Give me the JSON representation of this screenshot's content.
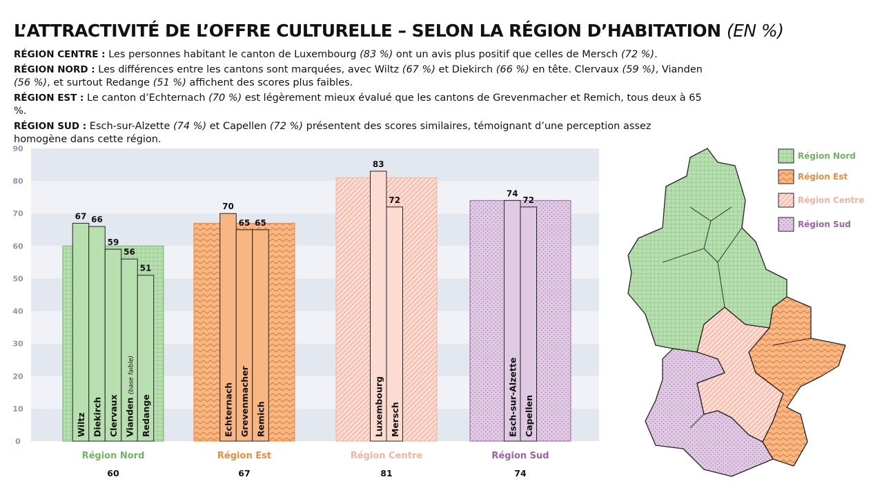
{
  "chart_data": {
    "type": "bar",
    "title": "L’ATTRACTIVITÉ DE L’OFFRE CULTURELLE – SELON LA RÉGION D’HABITATION",
    "title_unit": "(EN %)",
    "notes": [
      {
        "label": "RÉGION CENTRE :",
        "parts": [
          {
            "text": " Les personnes habitant le canton de Luxembourg "
          },
          {
            "text": "(83 %)",
            "italic": true
          },
          {
            "text": " ont un avis plus positif que celles de Mersch "
          },
          {
            "text": "(72 %)",
            "italic": true
          },
          {
            "text": "."
          }
        ]
      },
      {
        "label": "RÉGION NORD :",
        "parts": [
          {
            "text": " Les différences entre les cantons sont marquées, avec Wiltz "
          },
          {
            "text": "(67 %)",
            "italic": true
          },
          {
            "text": " et Diekirch "
          },
          {
            "text": "(66 %)",
            "italic": true
          },
          {
            "text": " en tête. Clervaux "
          },
          {
            "text": "(59 %)",
            "italic": true
          },
          {
            "text": ", Vianden "
          },
          {
            "text": "(56 %)",
            "italic": true
          },
          {
            "text": ", et surtout Redange "
          },
          {
            "text": "(51 %)",
            "italic": true
          },
          {
            "text": " affichent des scores plus faibles."
          }
        ]
      },
      {
        "label": "RÉGION EST :",
        "parts": [
          {
            "text": " Le canton d’Echternach "
          },
          {
            "text": "(70 %)",
            "italic": true
          },
          {
            "text": " est légèrement mieux évalué que les cantons de Grevenmacher et Remich, tous deux à 65 %."
          }
        ]
      },
      {
        "label": "RÉGION SUD :",
        "parts": [
          {
            "text": " Esch-sur-Alzette "
          },
          {
            "text": "(74 %)",
            "italic": true
          },
          {
            "text": " et Capellen "
          },
          {
            "text": "(72 %)",
            "italic": true
          },
          {
            "text": " présentent des scores similaires, témoignant d’une perception assez homogène dans cette région."
          }
        ]
      }
    ],
    "ylim": [
      0,
      90
    ],
    "yticks": [
      0,
      10,
      20,
      30,
      40,
      50,
      60,
      70,
      80,
      90
    ],
    "regions": [
      {
        "name": "Région Nord",
        "value": 60,
        "color": "#b7dfb0",
        "label_color": "#6cb660",
        "cantons": [
          {
            "name": "Wiltz",
            "value": 67
          },
          {
            "name": "Diekirch",
            "value": 66
          },
          {
            "name": "Clervaux",
            "value": 59
          },
          {
            "name": "Vianden",
            "note": "(base faible)",
            "value": 56
          },
          {
            "name": "Redange",
            "value": 51
          }
        ]
      },
      {
        "name": "Région Est",
        "value": 67,
        "color": "#f8b682",
        "label_color": "#ef8a3d",
        "cantons": [
          {
            "name": "Echternach",
            "value": 70
          },
          {
            "name": "Grevenmacher",
            "value": 65
          },
          {
            "name": "Remich",
            "value": 65
          }
        ]
      },
      {
        "name": "Région Centre",
        "value": 81,
        "color": "#fcdcd0",
        "label_color": "#f4b39d",
        "cantons": [
          {
            "name": "Luxembourg",
            "value": 83
          },
          {
            "name": "Mersch",
            "value": 72
          }
        ]
      },
      {
        "name": "Région Sud",
        "value": 74,
        "color": "#dfc9e3",
        "label_color": "#a060a8",
        "cantons": [
          {
            "name": "Esch-sur-Alzette",
            "value": 74
          },
          {
            "name": "Capellen",
            "value": 72
          }
        ]
      }
    ]
  }
}
